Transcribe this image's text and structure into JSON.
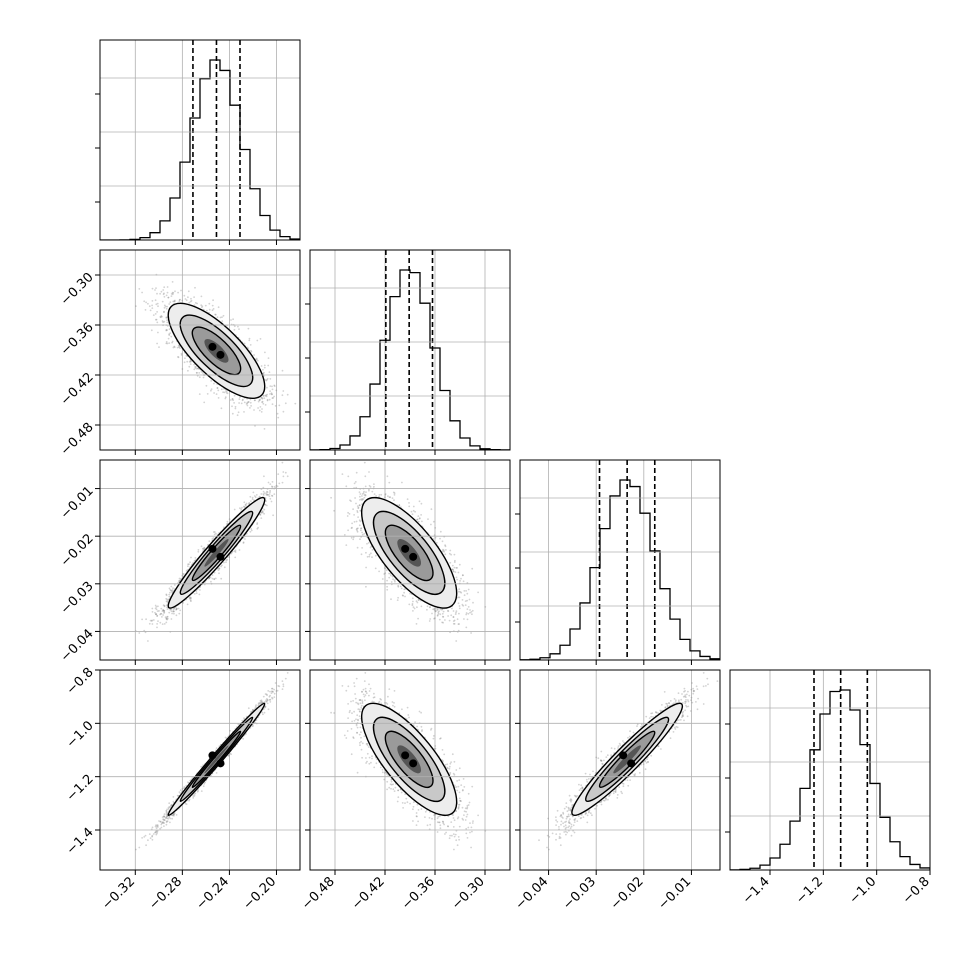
{
  "chart_data": {
    "type": "corner",
    "parameters": 4,
    "ticks": [
      {
        "values": [
          -0.32,
          -0.28,
          -0.24,
          -0.2
        ],
        "labels": [
          "−0.32",
          "−0.28",
          "−0.24",
          "−0.20"
        ]
      },
      {
        "values": [
          -0.48,
          -0.42,
          -0.36,
          -0.3
        ],
        "labels": [
          "−0.48",
          "−0.42",
          "−0.36",
          "−0.30"
        ]
      },
      {
        "values": [
          -0.04,
          -0.03,
          -0.02,
          -0.01
        ],
        "labels": [
          "−0.04",
          "−0.03",
          "−0.02",
          "−0.01"
        ]
      },
      {
        "values": [
          -1.4,
          -1.2,
          -1.0,
          -0.8
        ],
        "labels": [
          "−1.4",
          "−1.2",
          "−1.0",
          "−0.8"
        ]
      }
    ],
    "axis_ranges": [
      [
        -0.35,
        -0.18
      ],
      [
        -0.51,
        -0.27
      ],
      [
        -0.046,
        -0.004
      ],
      [
        -1.55,
        -0.8
      ]
    ],
    "means": [
      -0.251,
      -0.391,
      -0.0235,
      -1.135
    ],
    "sigmas": [
      0.0205,
      0.0285,
      0.0058,
      0.105
    ],
    "correlations": [
      [
        1.0,
        -0.75,
        0.96,
        0.99
      ],
      [
        -0.75,
        1.0,
        -0.73,
        -0.76
      ],
      [
        0.96,
        -0.73,
        1.0,
        0.95
      ],
      [
        0.99,
        -0.76,
        0.95,
        1.0
      ]
    ],
    "quantiles": [
      {
        "q16": -0.271,
        "q50": -0.251,
        "q84": -0.231
      },
      {
        "q16": -0.419,
        "q50": -0.391,
        "q84": -0.363
      },
      {
        "q16": -0.0293,
        "q50": -0.0235,
        "q84": -0.0177
      },
      {
        "q16": -1.235,
        "q50": -1.135,
        "q84": -1.035
      }
    ],
    "histogram_bins": 20,
    "grid": true,
    "colors": {
      "line": "#000000",
      "points": "#808080",
      "grid": "#b0b0b0"
    }
  }
}
